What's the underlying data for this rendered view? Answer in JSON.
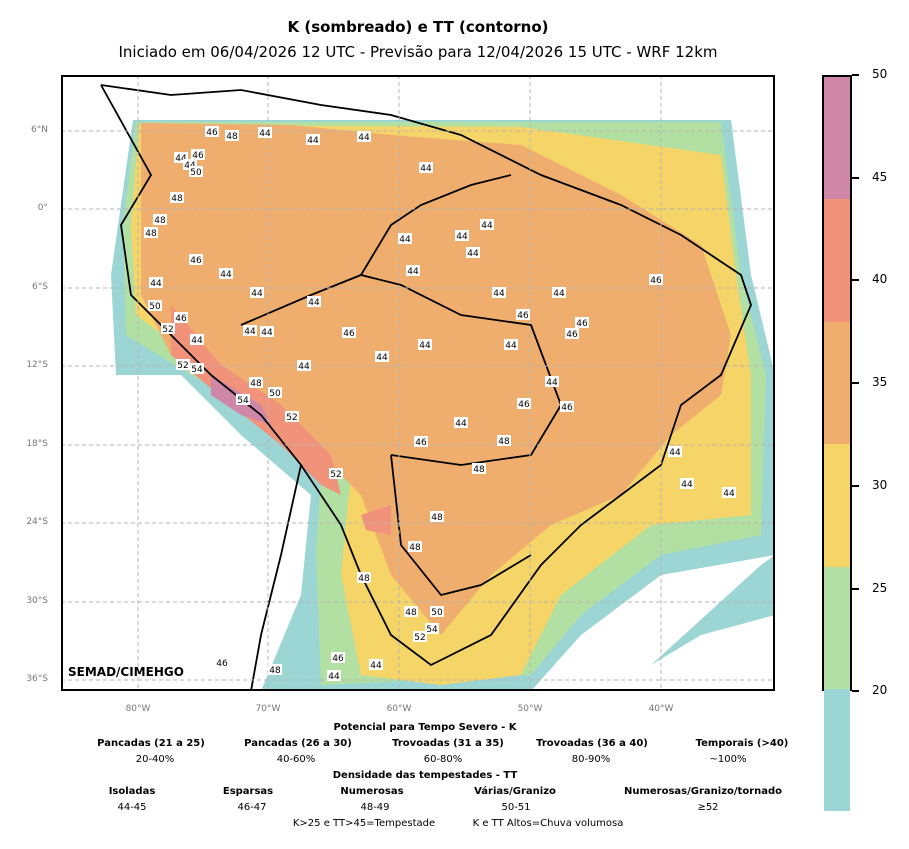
{
  "title": "K (sombreado) e TT (contorno)",
  "subtitle": "Iniciado em 06/04/2026 12 UTC - Previsão para 12/04/2026 15 UTC - WRF 12km",
  "credit": "SEMAD/CIMEHGO",
  "lat_labels": [
    "6°N",
    "0°",
    "6°S",
    "12°S",
    "18°S",
    "24°S",
    "30°S",
    "36°S"
  ],
  "lon_labels": [
    "80°W",
    "70°W",
    "60°W",
    "50°W",
    "40°W"
  ],
  "colorbar": {
    "ticks": [
      "50",
      "45",
      "40",
      "35",
      "30",
      "25",
      "20"
    ],
    "colors": [
      "#cf87a8",
      "#f0937a",
      "#efad6e",
      "#f5d468",
      "#b2e0a2",
      "#9bd5d4"
    ]
  },
  "contour_labels": [
    "46",
    "48",
    "44",
    "44",
    "44",
    "46",
    "50",
    "48",
    "44",
    "44",
    "48",
    "48",
    "44",
    "44",
    "46",
    "44",
    "44",
    "44",
    "44",
    "44",
    "44",
    "44",
    "44",
    "44",
    "44",
    "50",
    "44",
    "46",
    "46",
    "44",
    "52",
    "44",
    "44",
    "46",
    "44",
    "44",
    "44",
    "46",
    "52",
    "54",
    "44",
    "48",
    "50",
    "54",
    "52",
    "46",
    "44",
    "46",
    "48",
    "46",
    "48",
    "44",
    "44",
    "44",
    "46",
    "52",
    "48",
    "48",
    "48",
    "48",
    "50",
    "54",
    "52",
    "46",
    "46",
    "44",
    "46",
    "48",
    "44"
  ],
  "legend": {
    "k_title": "Potencial para Tempo Severo - K",
    "k_classes": [
      {
        "name": "Pancadas (21 a 25)",
        "pct": "20-40%"
      },
      {
        "name": "Pancadas (26 a 30)",
        "pct": "40-60%"
      },
      {
        "name": "Trovoadas (31 a 35)",
        "pct": "60-80%"
      },
      {
        "name": "Trovoadas (36 a 40)",
        "pct": "80-90%"
      },
      {
        "name": "Temporais (>40)",
        "pct": "~100%"
      }
    ],
    "tt_title": "Densidade das tempestades - TT",
    "tt_classes": [
      {
        "name": "Isoladas",
        "range": "44-45"
      },
      {
        "name": "Esparsas",
        "range": "46-47"
      },
      {
        "name": "Numerosas",
        "range": "48-49"
      },
      {
        "name": "Várias/Granizo",
        "range": "50-51"
      },
      {
        "name": "Numerosas/Granizo/tornado",
        "range": "≥52"
      }
    ],
    "note1": "K>25 e TT>45=Tempestade",
    "note2": "K e TT Altos=Chuva volumosa"
  }
}
